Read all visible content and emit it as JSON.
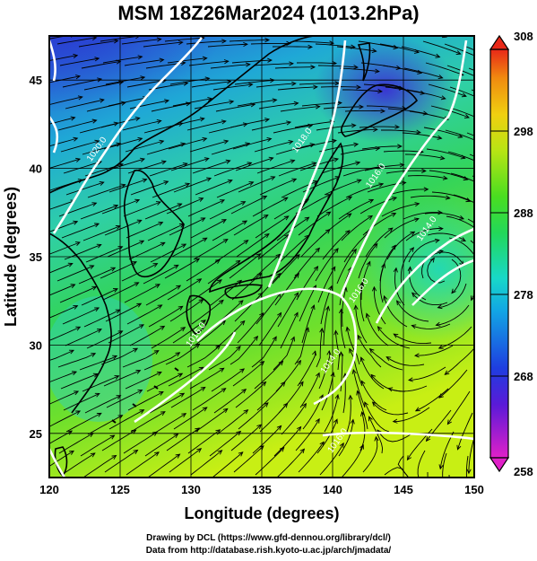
{
  "title": "MSM 18Z26Mar2024 (1013.2hPa)",
  "map": {
    "x_axis": {
      "label": "Longitude (degrees)",
      "min": 120,
      "max": 150,
      "ticks": [
        120,
        125,
        130,
        135,
        140,
        145,
        150
      ]
    },
    "y_axis": {
      "label": "Latitude  (degrees)",
      "min": 22.5,
      "max": 47.5,
      "ticks": [
        25,
        30,
        35,
        40,
        45
      ]
    },
    "colorbar": {
      "min": 258,
      "max": 308,
      "tick_labels": [
        258,
        268,
        278,
        288,
        298,
        308
      ]
    },
    "contour_labels": [
      {
        "text": "1020.0",
        "lon": 123.5,
        "lat": 41.0
      },
      {
        "text": "1018.0",
        "lon": 138.0,
        "lat": 41.5
      },
      {
        "text": "1016.0",
        "lon": 143.2,
        "lat": 39.5
      },
      {
        "text": "1014.0",
        "lon": 146.8,
        "lat": 36.5
      },
      {
        "text": "1016.0",
        "lon": 142.0,
        "lat": 33.0
      },
      {
        "text": "1016.0",
        "lon": 130.5,
        "lat": 30.5
      },
      {
        "text": "1014.0",
        "lon": 140.0,
        "lat": 29.0
      },
      {
        "text": "1016.0",
        "lon": 140.5,
        "lat": 24.5
      }
    ]
  },
  "credits": [
    "Drawing by DCL (https://www.gfd-dennou.org/library/dcl/)",
    "Data from http://database.rish.kyoto-u.ac.jp/arch/jmadata/"
  ]
}
